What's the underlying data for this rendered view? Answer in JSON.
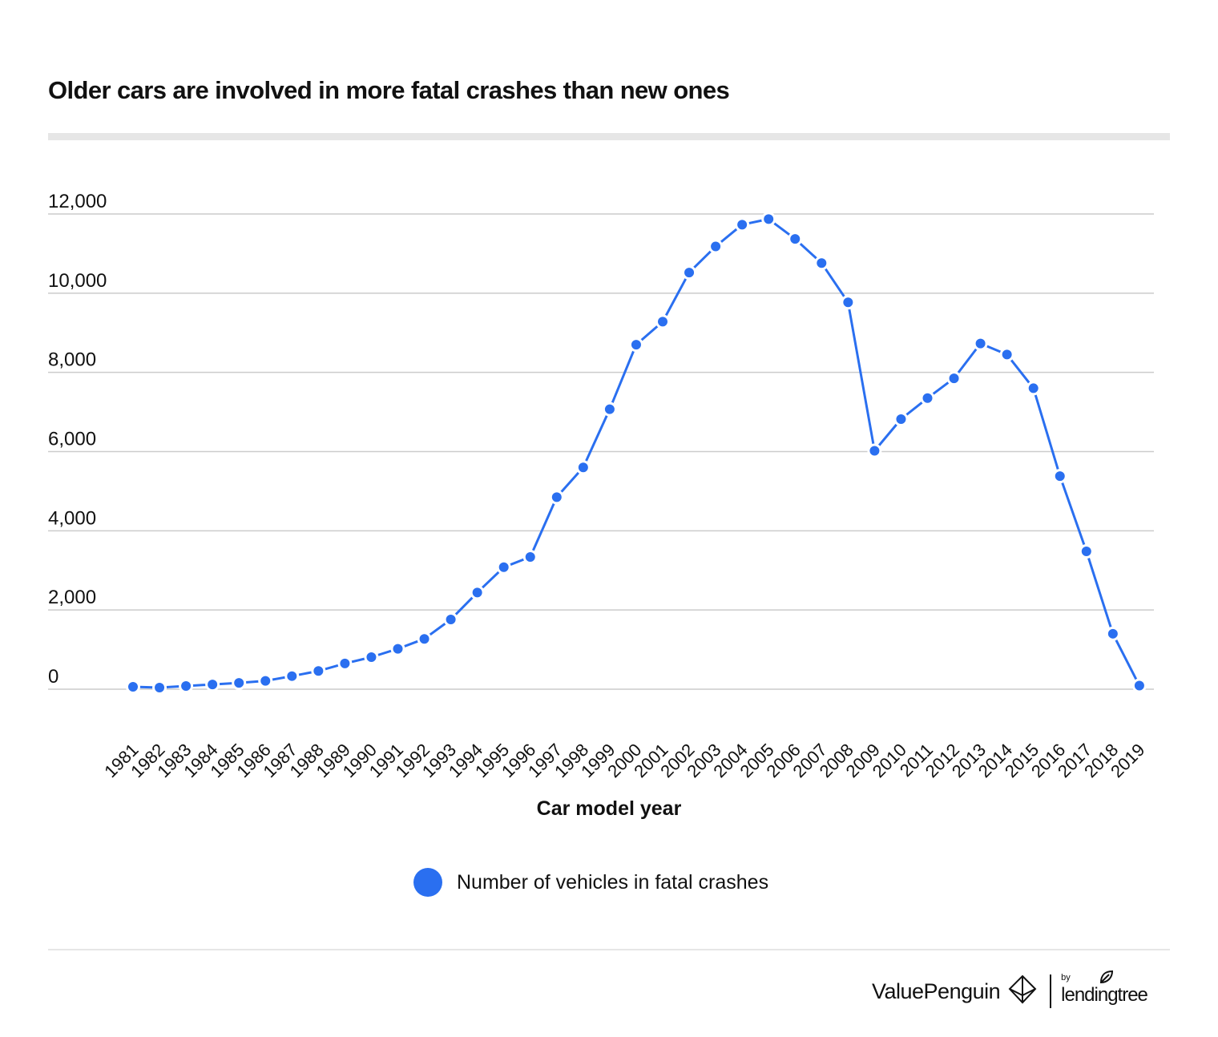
{
  "title": "Older cars are involved in more fatal crashes than new ones",
  "colors": {
    "series": "#2a6ff0",
    "grid": "#cccccc",
    "rule": "#e6e6e6"
  },
  "legend_label": "Number of vehicles in fatal crashes",
  "brand": {
    "name": "ValuePenguin",
    "by": "by",
    "parent": "lendingtree"
  },
  "chart_data": {
    "type": "line",
    "title": "Older cars are involved in more fatal crashes than new ones",
    "xlabel": "Car model year",
    "ylabel": "",
    "ylim": [
      0,
      12000
    ],
    "yticks": [
      0,
      2000,
      4000,
      6000,
      8000,
      10000,
      12000
    ],
    "ytick_labels": [
      "0",
      "2,000",
      "4,000",
      "6,000",
      "8,000",
      "10,000",
      "12,000"
    ],
    "grid": true,
    "legend_position": "bottom",
    "categories": [
      "1981",
      "1982",
      "1983",
      "1984",
      "1985",
      "1986",
      "1987",
      "1988",
      "1989",
      "1990",
      "1991",
      "1992",
      "1993",
      "1994",
      "1995",
      "1996",
      "1997",
      "1998",
      "1999",
      "2000",
      "2001",
      "2002",
      "2003",
      "2004",
      "2005",
      "2006",
      "2007",
      "2008",
      "2009",
      "2010",
      "2011",
      "2012",
      "2013",
      "2014",
      "2015",
      "2016",
      "2017",
      "2018",
      "2019"
    ],
    "series": [
      {
        "name": "Number of vehicles in fatal crashes",
        "values": [
          60,
          40,
          80,
          120,
          160,
          210,
          330,
          460,
          650,
          810,
          1020,
          1270,
          1760,
          2440,
          3080,
          3340,
          4850,
          5600,
          7070,
          8700,
          9280,
          10520,
          11180,
          11730,
          11870,
          11370,
          10760,
          9770,
          6020,
          6820,
          7350,
          7850,
          8730,
          8450,
          7600,
          5380,
          3480,
          1400,
          90
        ]
      }
    ]
  }
}
